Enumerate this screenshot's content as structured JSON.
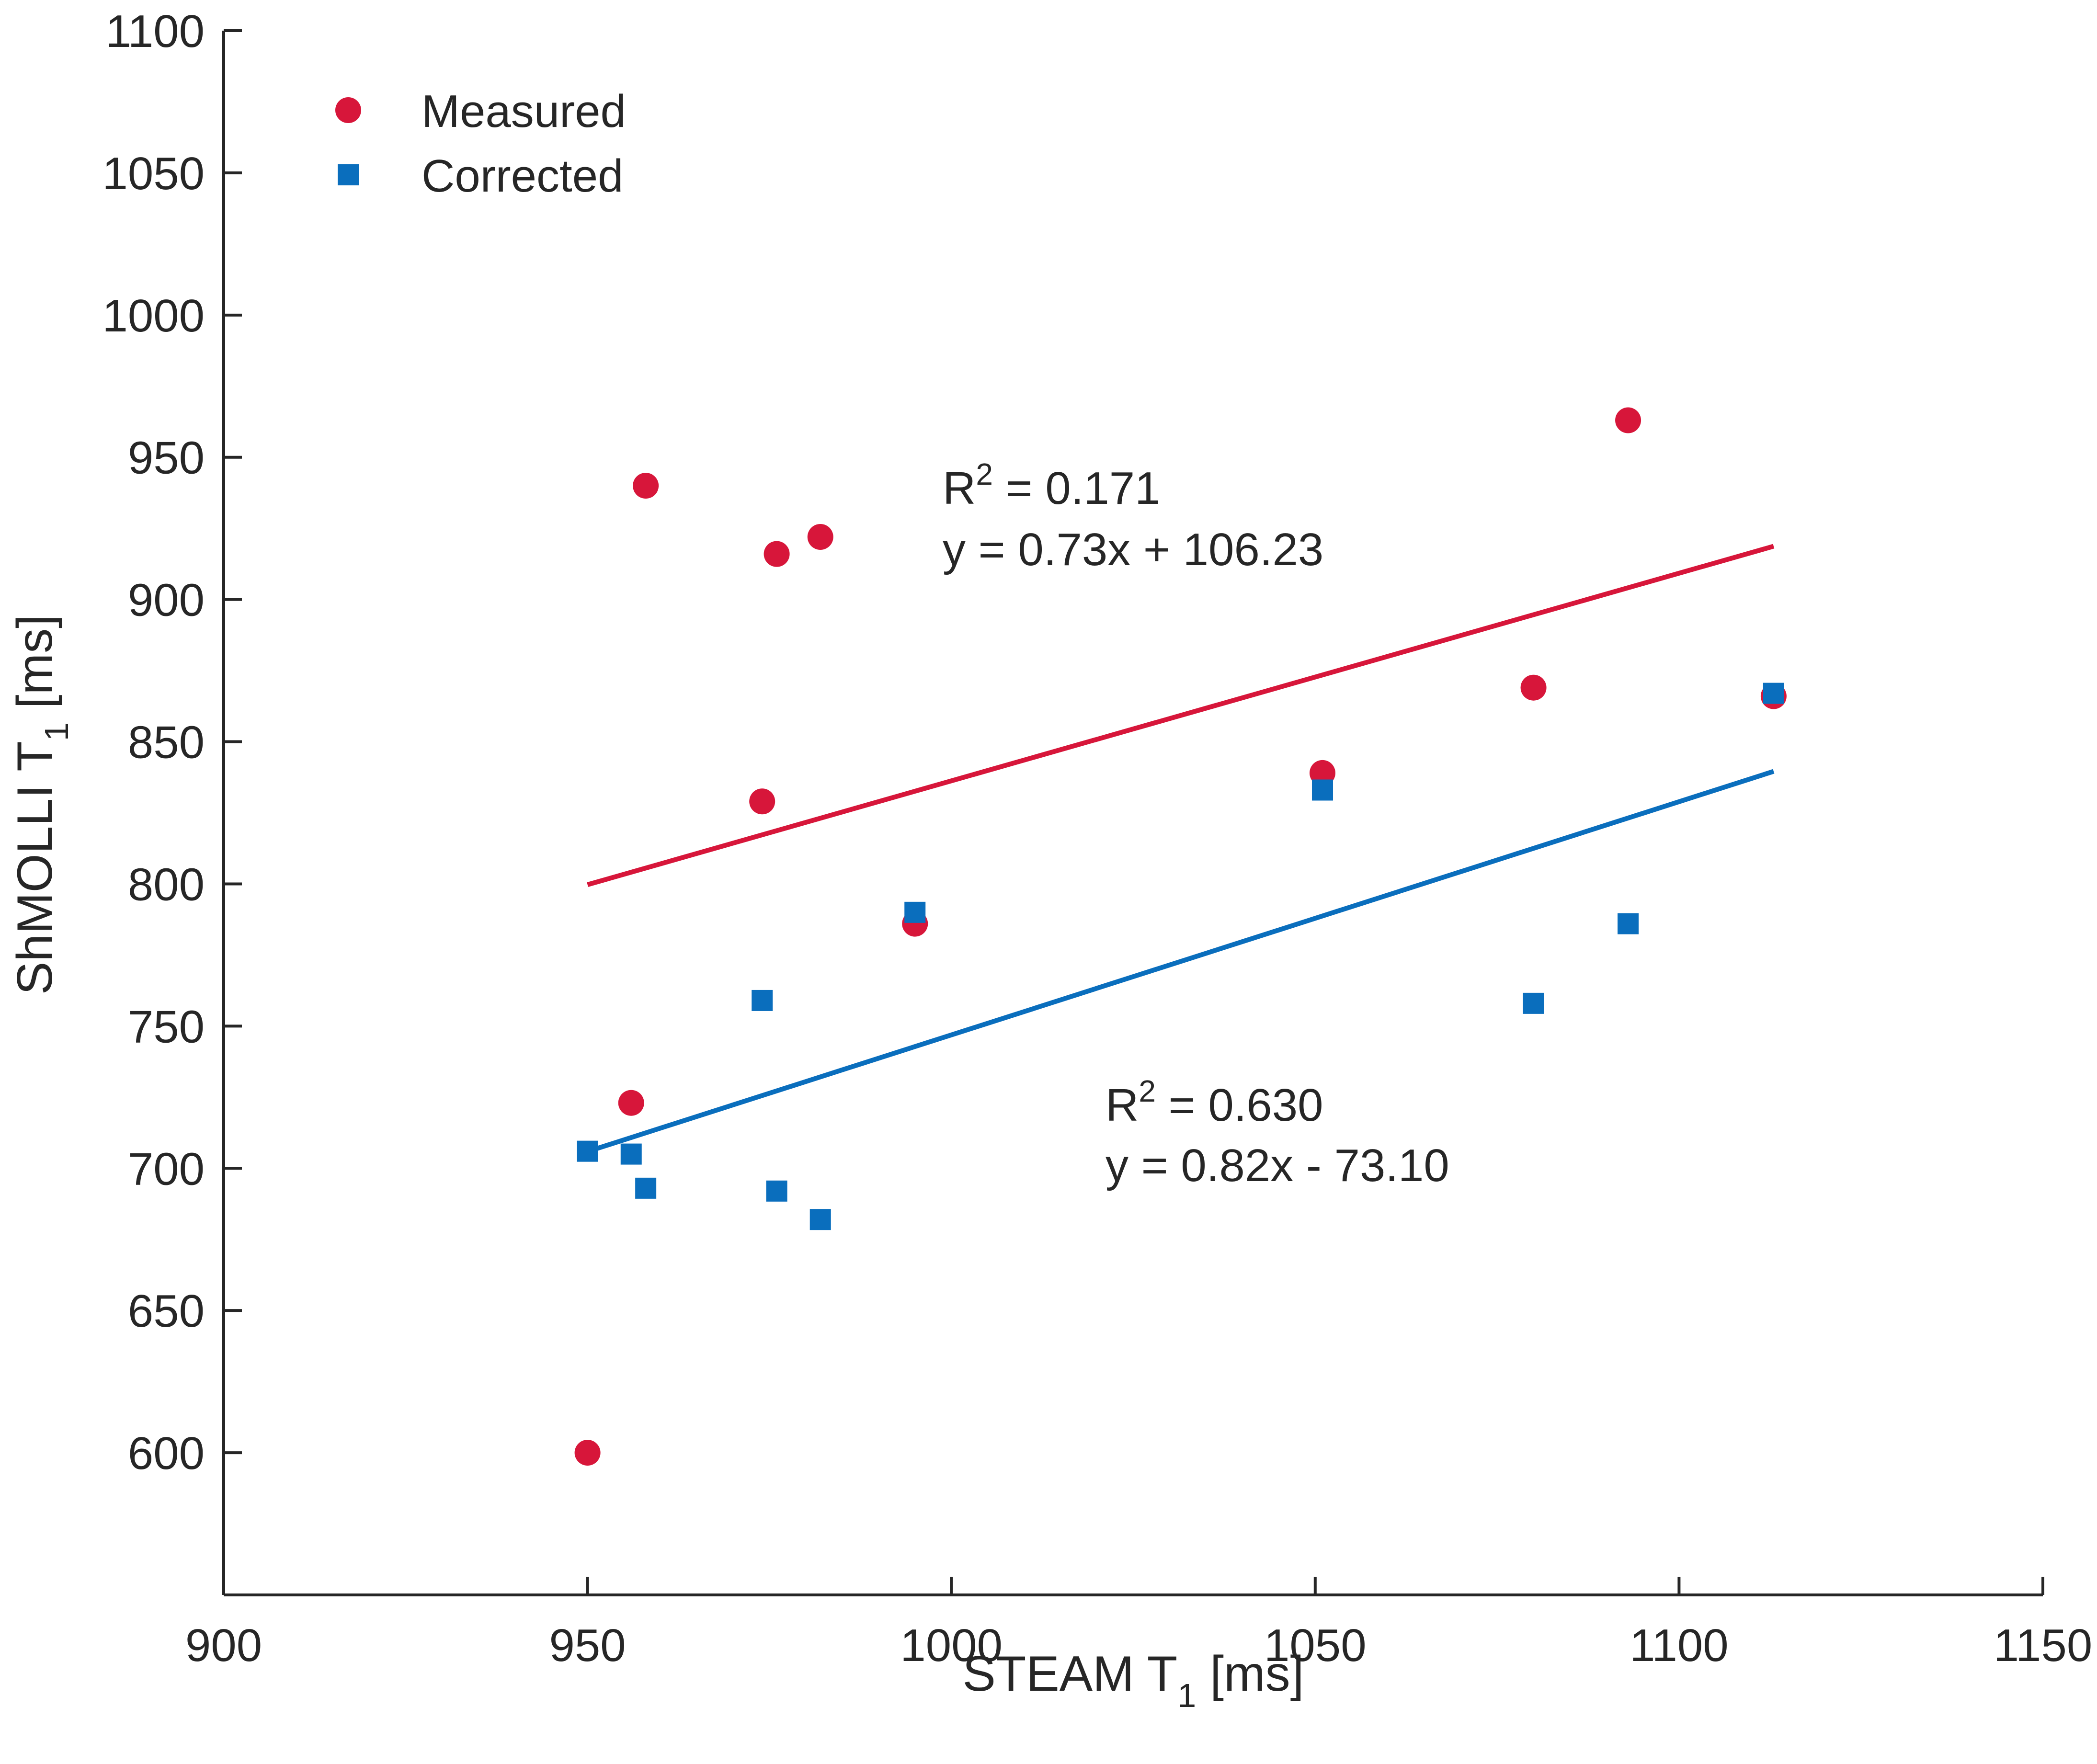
{
  "chart_data": {
    "type": "scatter",
    "title": "",
    "xlabel": "STEAM T",
    "xlabel_subscript": "1",
    "xlabel_unit": " [ms]",
    "ylabel": "ShMOLLI T",
    "ylabel_subscript": "1",
    "ylabel_unit": " [ms]",
    "xlim": [
      900,
      1150
    ],
    "ylim": [
      550,
      1100
    ],
    "xticks": [
      900,
      950,
      1000,
      1050,
      1100,
      1150
    ],
    "yticks": [
      600,
      650,
      700,
      750,
      800,
      850,
      900,
      950,
      1000,
      1050,
      1100
    ],
    "grid": false,
    "legend_position": "top-left",
    "series": [
      {
        "name": "Measured",
        "marker": "circle",
        "color": "#d7163a",
        "points": [
          {
            "x": 950,
            "y": 600
          },
          {
            "x": 956,
            "y": 723
          },
          {
            "x": 958,
            "y": 940
          },
          {
            "x": 974,
            "y": 829
          },
          {
            "x": 976,
            "y": 916
          },
          {
            "x": 982,
            "y": 922
          },
          {
            "x": 995,
            "y": 786
          },
          {
            "x": 1051,
            "y": 839
          },
          {
            "x": 1080,
            "y": 869
          },
          {
            "x": 1093,
            "y": 963
          },
          {
            "x": 1113,
            "y": 866
          }
        ],
        "fit": {
          "slope": 0.73,
          "intercept": 106.23,
          "x_range": [
            950,
            1113
          ]
        },
        "r2_label": "R",
        "r2_sup": "2",
        "r2_value": " = 0.171",
        "equation": "y = 0.73x + 106.23"
      },
      {
        "name": "Corrected",
        "marker": "square",
        "color": "#0a6ebd",
        "points": [
          {
            "x": 950,
            "y": 706
          },
          {
            "x": 956,
            "y": 705
          },
          {
            "x": 958,
            "y": 693
          },
          {
            "x": 974,
            "y": 759
          },
          {
            "x": 976,
            "y": 692
          },
          {
            "x": 982,
            "y": 682
          },
          {
            "x": 995,
            "y": 790
          },
          {
            "x": 1051,
            "y": 833
          },
          {
            "x": 1080,
            "y": 758
          },
          {
            "x": 1093,
            "y": 786
          },
          {
            "x": 1113,
            "y": 867
          }
        ],
        "fit": {
          "slope": 0.82,
          "intercept": -73.1,
          "x_range": [
            950,
            1113
          ]
        },
        "r2_label": "R",
        "r2_sup": "2",
        "r2_value": " = 0.630",
        "equation": "y = 0.82x - 73.10"
      }
    ]
  }
}
